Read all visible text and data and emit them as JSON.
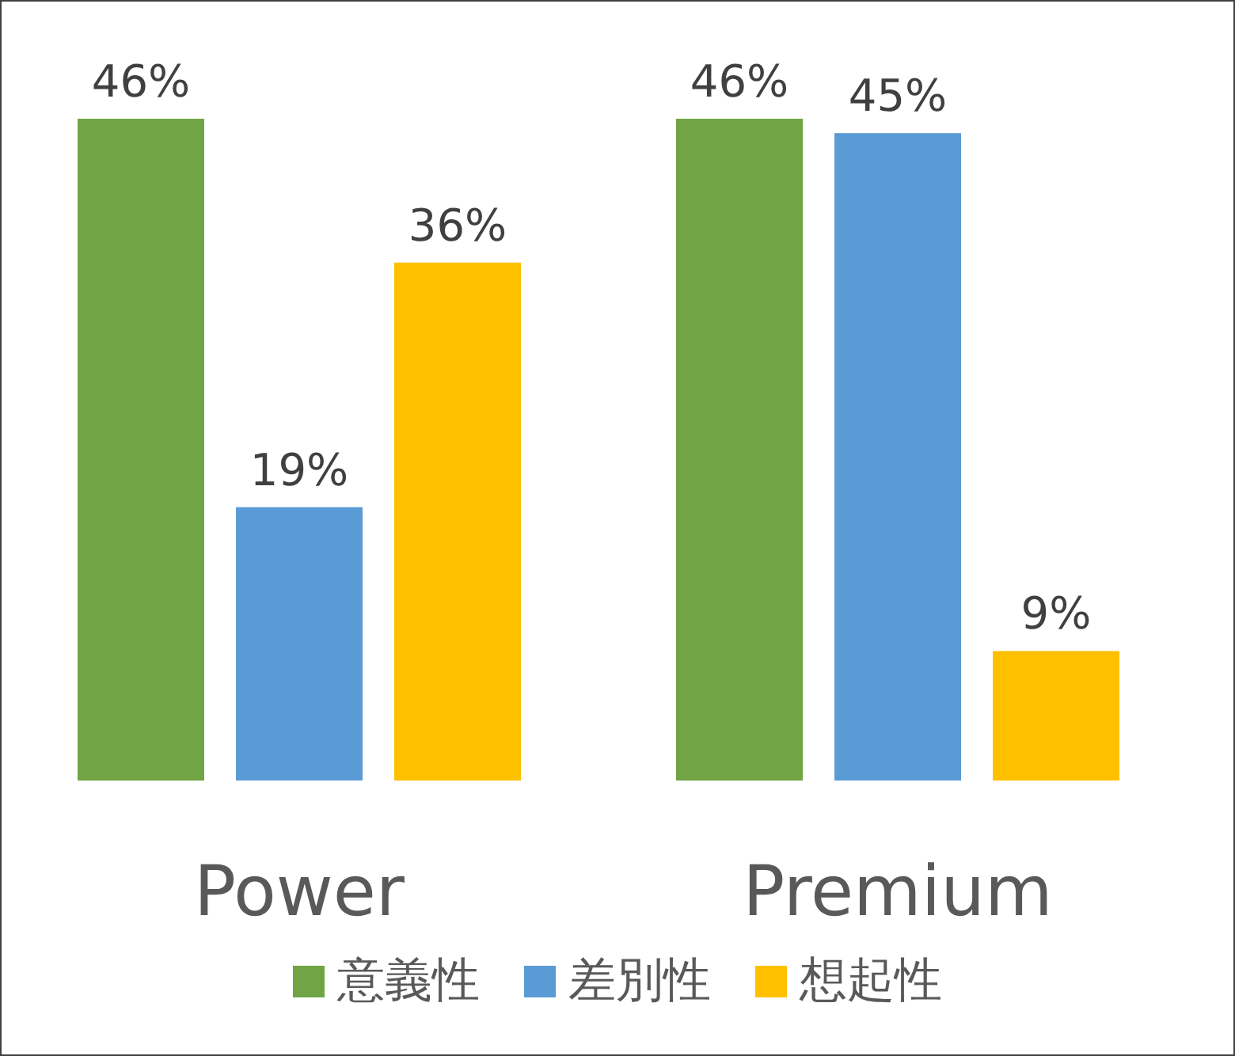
{
  "chart_data": {
    "type": "bar",
    "categories": [
      "Power",
      "Premium"
    ],
    "series": [
      {
        "name": "意義性",
        "color": "#70a444",
        "values": [
          46,
          46
        ],
        "value_labels": [
          "46%",
          "46%"
        ]
      },
      {
        "name": "差別性",
        "color": "#5b9bd5",
        "values": [
          19,
          45
        ],
        "value_labels": [
          "19%",
          "45%"
        ]
      },
      {
        "name": "想起性",
        "color": "#ffc000",
        "values": [
          36,
          9
        ],
        "value_labels": [
          "36%",
          "9%"
        ]
      }
    ],
    "legend": "bottom"
  }
}
